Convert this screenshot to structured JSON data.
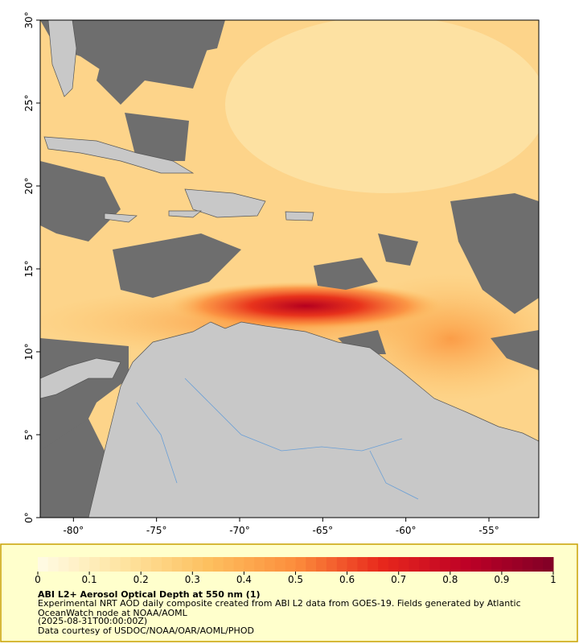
{
  "map": {
    "xlim": [
      -82,
      -52
    ],
    "ylim": [
      0,
      30
    ],
    "xticks": [
      {
        "value": -80,
        "label": "-80°"
      },
      {
        "value": -75,
        "label": "-75°"
      },
      {
        "value": -70,
        "label": "-70°"
      },
      {
        "value": -65,
        "label": "-65°"
      },
      {
        "value": -60,
        "label": "-60°"
      },
      {
        "value": -55,
        "label": "-55°"
      }
    ],
    "yticks": [
      {
        "value": 0,
        "label": "0°"
      },
      {
        "value": 5,
        "label": "5°"
      },
      {
        "value": 10,
        "label": "10°"
      },
      {
        "value": 15,
        "label": "15°"
      },
      {
        "value": 20,
        "label": "20°"
      },
      {
        "value": 25,
        "label": "25°"
      },
      {
        "value": 30,
        "label": "30°"
      }
    ]
  },
  "colorbar": {
    "range": [
      0,
      1
    ],
    "ticks": [
      0,
      0.1,
      0.2,
      0.3,
      0.4,
      0.5,
      0.6,
      0.7,
      0.8,
      0.9,
      1
    ],
    "colormap": [
      "#fffbe6",
      "#fee4a0",
      "#fdbf5e",
      "#fc8d3c",
      "#e8281c",
      "#bd0026",
      "#800026"
    ]
  },
  "legend": {
    "title": "ABI L2+ Aerosol Optical Depth at 550 nm (1)",
    "description": "Experimental NRT AOD daily composite created from ABI L2 data from GOES-19. Fields generated by Atlantic OceanWatch node at NOAA/AOML",
    "date": "(2025-08-31T00:00:00Z)",
    "credit": "Data courtesy of USDOC/NOAA/OAR/AOML/PHOD"
  }
}
